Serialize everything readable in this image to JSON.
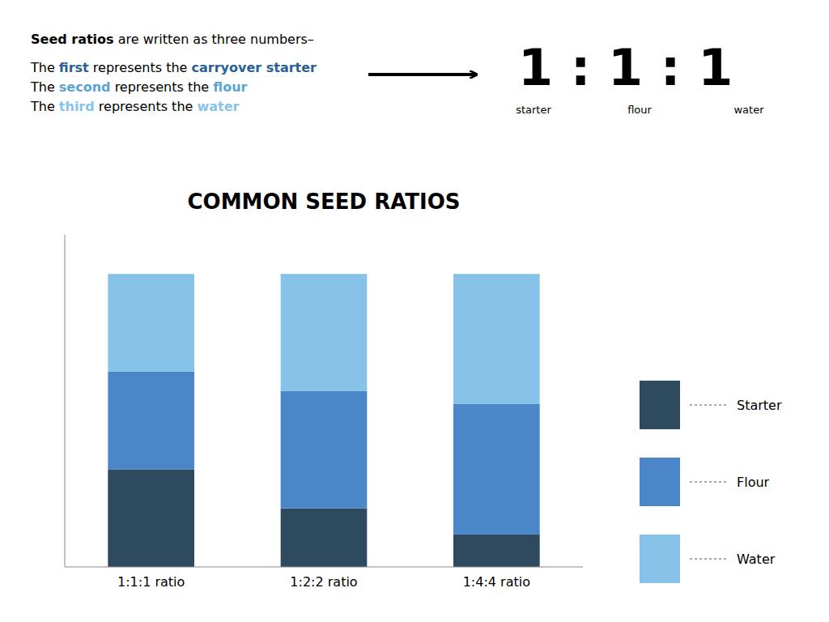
{
  "chart_data": {
    "type": "bar",
    "stacked": true,
    "title": "COMMON SEED RATIOS",
    "categories": [
      "1:1:1 ratio",
      "1:2:2 ratio",
      "1:4:4 ratio"
    ],
    "series": [
      {
        "name": "Starter",
        "color": "#2d4a5e",
        "values": [
          3,
          1.8,
          1
        ]
      },
      {
        "name": "Flour",
        "color": "#4a86c8",
        "values": [
          3,
          3.6,
          4
        ]
      },
      {
        "name": "Water",
        "color": "#87c3e8",
        "values": [
          3,
          3.6,
          4
        ]
      }
    ],
    "ylim": [
      0,
      10.2
    ],
    "tick_labels": "x",
    "grid": false,
    "legend": "lower right",
    "annotations": {
      "lines": [
        [
          {
            "text": "Seed ratios",
            "color": "#000000"
          },
          {
            "text": " are written as three numbers–"
          }
        ],
        [
          {
            "text": "The "
          },
          {
            "text": "first",
            "color": "#2a6095"
          },
          {
            "text": " represents the "
          },
          {
            "text": "carryover starter",
            "color": "#2a6095"
          }
        ],
        [
          {
            "text": "The "
          },
          {
            "text": "second",
            "color": "#5ba3d0"
          },
          {
            "text": " represents the "
          },
          {
            "text": "flour",
            "color": "#5ba3d0"
          }
        ],
        [
          {
            "text": "The "
          },
          {
            "text": "third",
            "color": "#87c3e8"
          },
          {
            "text": " represents the "
          },
          {
            "text": "water",
            "color": "#87c3e8"
          }
        ]
      ],
      "ratio": "1 : 1 : 1",
      "ratio_labels": [
        "starter",
        "flour",
        "water"
      ]
    }
  }
}
